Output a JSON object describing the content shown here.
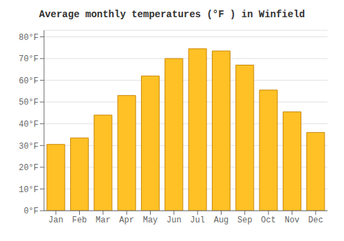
{
  "chart_data": {
    "type": "bar",
    "title": "Average monthly temperatures (°F ) in Winfield",
    "categories": [
      "Jan",
      "Feb",
      "Mar",
      "Apr",
      "May",
      "Jun",
      "Jul",
      "Aug",
      "Sep",
      "Oct",
      "Nov",
      "Dec"
    ],
    "values": [
      30.5,
      33.5,
      44,
      53,
      62,
      70,
      74.5,
      73.5,
      67,
      55.5,
      45.5,
      36
    ],
    "color": "#FFC125",
    "ylim": [
      0,
      83
    ],
    "yticks": [
      {
        "value": 0,
        "label": "0°F"
      },
      {
        "value": 10,
        "label": "10°F"
      },
      {
        "value": 20,
        "label": "20°F"
      },
      {
        "value": 30,
        "label": "30°F"
      },
      {
        "value": 40,
        "label": "40°F"
      },
      {
        "value": 50,
        "label": "50°F"
      },
      {
        "value": 60,
        "label": "60°F"
      },
      {
        "value": 70,
        "label": "70°F"
      },
      {
        "value": 80,
        "label": "80°F"
      }
    ],
    "grid": true
  }
}
